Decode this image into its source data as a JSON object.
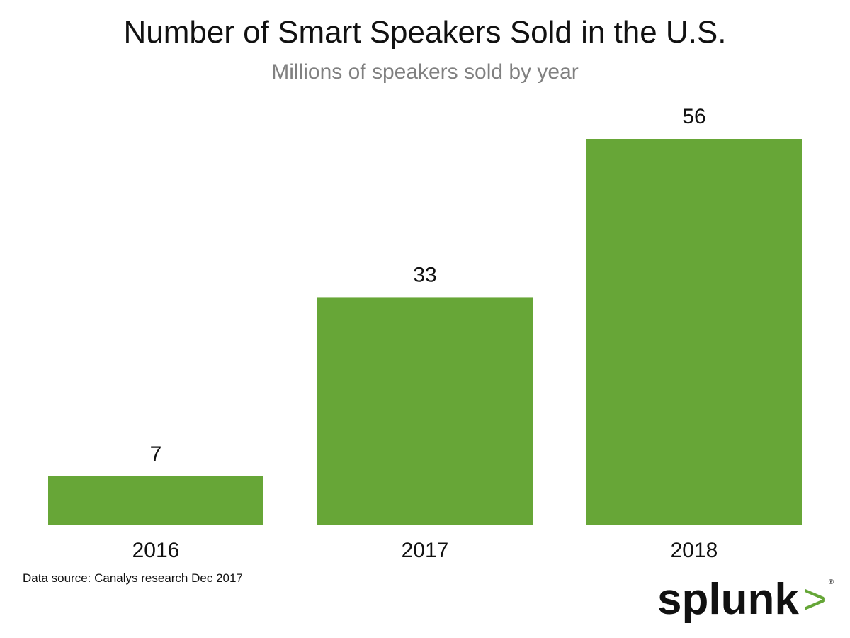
{
  "chart_data": {
    "type": "bar",
    "title": "Number of Smart Speakers Sold in the U.S.",
    "subtitle": "Millions of speakers sold by year",
    "categories": [
      "2016",
      "2017",
      "2018"
    ],
    "values": [
      7,
      33,
      56
    ],
    "data_labels": [
      "7",
      "33",
      "56"
    ],
    "xlabel": "",
    "ylabel": "",
    "ylim": [
      0,
      56
    ],
    "grid": false,
    "bar_color": "#67a637"
  },
  "footer": {
    "source": "Data source: Canalys research Dec 2017",
    "logo": "splunk>"
  }
}
